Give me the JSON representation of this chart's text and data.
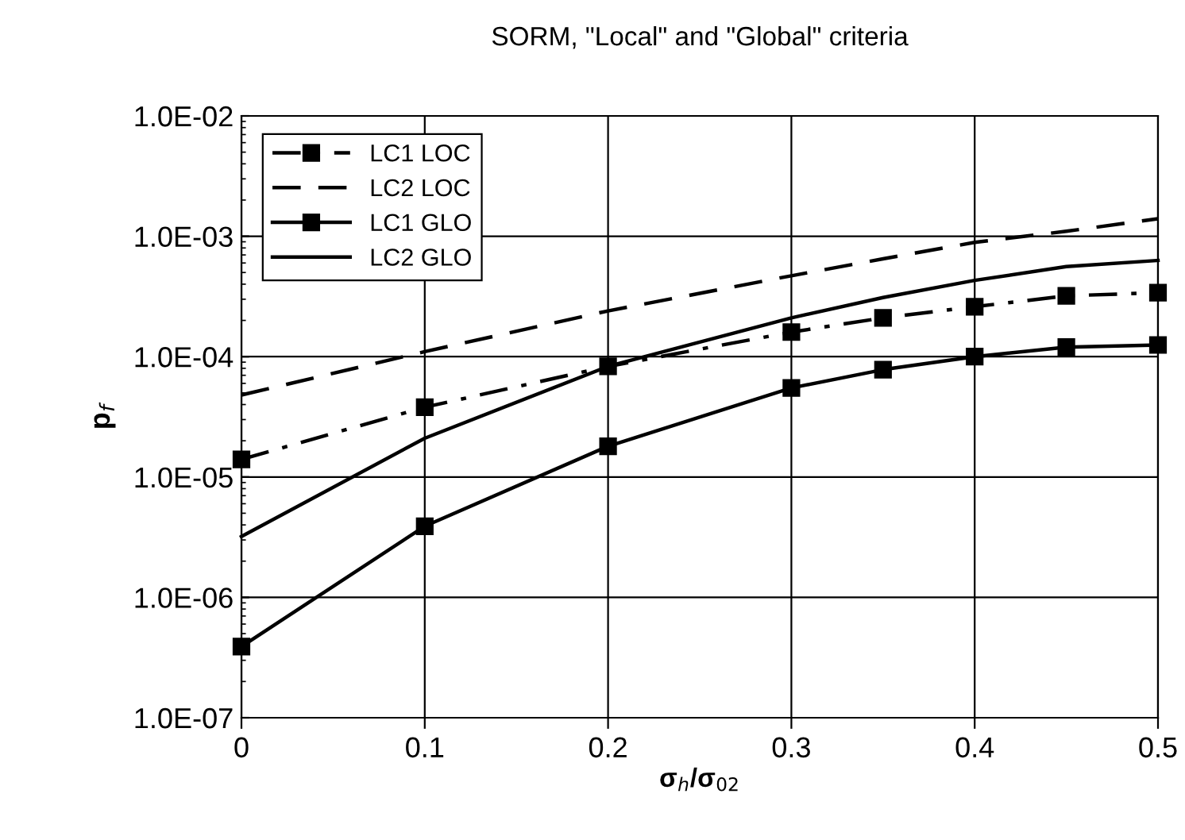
{
  "chart_data": {
    "type": "line",
    "title": "SORM, \"Local\" and \"Global\" criteria",
    "xlabel": "σ$_{h}$/σ$_{02}$",
    "ylabel": "p$_{f}$",
    "log": "y",
    "x": [
      0,
      0.1,
      0.2,
      0.3,
      0.35,
      0.4,
      0.45,
      0.5
    ],
    "series": [
      {
        "name": "LC1 LOC",
        "color": "#000000",
        "line_style": "dashdot",
        "marker": "square",
        "values": [
          1.4e-05,
          3.8e-05,
          8.3e-05,
          0.00016,
          0.00021,
          0.00026,
          0.00032,
          0.00034
        ]
      },
      {
        "name": "LC2 LOC",
        "color": "#000000",
        "line_style": "dashed",
        "marker": "none",
        "values": [
          4.8e-05,
          0.00011,
          0.00024,
          0.00047,
          0.00065,
          0.00089,
          0.0011,
          0.0014
        ]
      },
      {
        "name": "LC1 GLO",
        "color": "#000000",
        "line_style": "solid",
        "marker": "square",
        "values": [
          3.9e-07,
          3.9e-06,
          1.8e-05,
          5.5e-05,
          7.8e-05,
          0.0001,
          0.00012,
          0.000125
        ]
      },
      {
        "name": "LC2 GLO",
        "color": "#000000",
        "line_style": "solid",
        "marker": "none",
        "values": [
          3.2e-06,
          2.1e-05,
          8.3e-05,
          0.00021,
          0.00031,
          0.00043,
          0.00056,
          0.00063
        ]
      }
    ],
    "xlim": [
      0,
      0.5
    ],
    "xticks": [
      0,
      0.1,
      0.2,
      0.3,
      0.4,
      0.5
    ],
    "ylim": [
      1e-07,
      0.01
    ],
    "yticks": [
      {
        "value": 1e-07,
        "label": "1.0E-07"
      },
      {
        "value": 1e-06,
        "label": "1.0E-06"
      },
      {
        "value": 1e-05,
        "label": "1.0E-05"
      },
      {
        "value": 0.0001,
        "label": "1.0E-04"
      },
      {
        "value": 0.001,
        "label": "1.0E-03"
      },
      {
        "value": 0.01,
        "label": "1.0E-02"
      }
    ],
    "grid": true,
    "legend": "top left"
  }
}
